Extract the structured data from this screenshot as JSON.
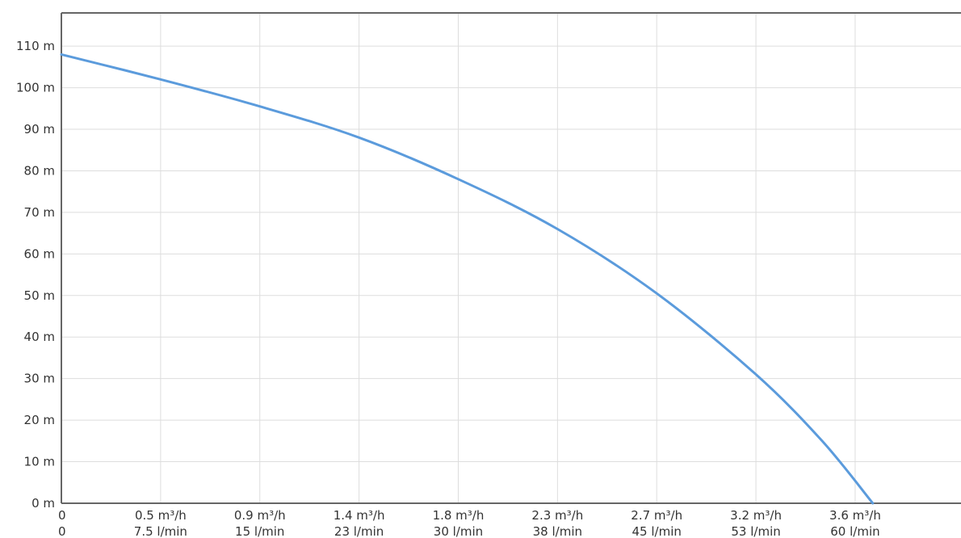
{
  "chart_data": {
    "type": "line",
    "title": "",
    "xlabel": "",
    "ylabel": "",
    "unit_y": "m",
    "grid": true,
    "xlim": [
      0,
      4.08
    ],
    "ylim": [
      0,
      118
    ],
    "y_ticks": [
      {
        "value": 0,
        "label": "0 m"
      },
      {
        "value": 10,
        "label": "10 m"
      },
      {
        "value": 20,
        "label": "20 m"
      },
      {
        "value": 30,
        "label": "30 m"
      },
      {
        "value": 40,
        "label": "40 m"
      },
      {
        "value": 50,
        "label": "50 m"
      },
      {
        "value": 60,
        "label": "60 m"
      },
      {
        "value": 70,
        "label": "70 m"
      },
      {
        "value": 80,
        "label": "80 m"
      },
      {
        "value": 90,
        "label": "90 m"
      },
      {
        "value": 100,
        "label": "100 m"
      },
      {
        "value": 110,
        "label": "110 m"
      }
    ],
    "x_ticks": [
      {
        "value": 0,
        "label_m3h": "0",
        "label_lmin": "0"
      },
      {
        "value": 0.45,
        "label_m3h": "0.5 m³/h",
        "label_lmin": "7.5 l/min"
      },
      {
        "value": 0.9,
        "label_m3h": "0.9 m³/h",
        "label_lmin": "15 l/min"
      },
      {
        "value": 1.35,
        "label_m3h": "1.4 m³/h",
        "label_lmin": "23 l/min"
      },
      {
        "value": 1.8,
        "label_m3h": "1.8 m³/h",
        "label_lmin": "30 l/min"
      },
      {
        "value": 2.25,
        "label_m3h": "2.3 m³/h",
        "label_lmin": "38 l/min"
      },
      {
        "value": 2.7,
        "label_m3h": "2.7 m³/h",
        "label_lmin": "45 l/min"
      },
      {
        "value": 3.15,
        "label_m3h": "3.2 m³/h",
        "label_lmin": "53 l/min"
      },
      {
        "value": 3.6,
        "label_m3h": "3.6 m³/h",
        "label_lmin": "60 l/min"
      }
    ],
    "series": [
      {
        "color": "#5b9bdc",
        "x": [
          0,
          0.45,
          0.9,
          1.35,
          1.8,
          2.25,
          2.7,
          3.15,
          3.45,
          3.68
        ],
        "y": [
          108,
          102,
          95.5,
          88,
          78,
          66,
          50.5,
          31,
          15,
          0
        ]
      }
    ],
    "colors": {
      "line": "#5b9bdc",
      "grid": "#dddddd",
      "axis": "#666666",
      "text": "#333333"
    }
  }
}
